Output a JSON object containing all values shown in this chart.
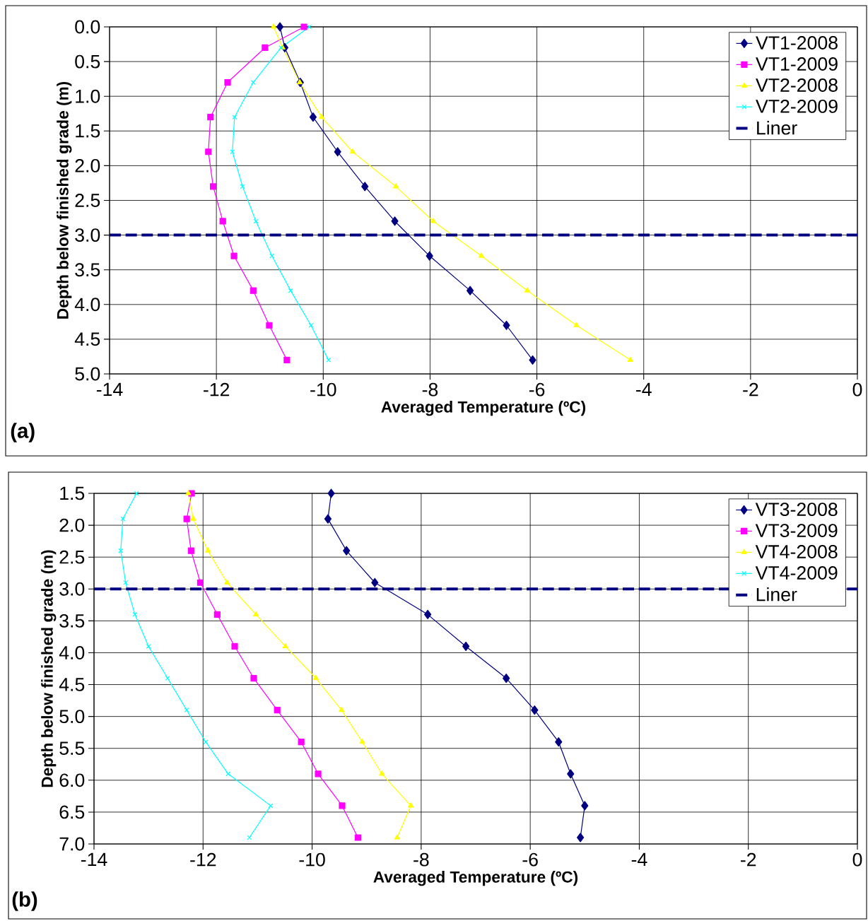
{
  "chart_data": [
    {
      "type": "line",
      "xlabel": "Averaged Temperature (ºC)",
      "ylabel": "Depth below finished grade (m)",
      "annotations": [
        "(a)"
      ],
      "xlim": [
        -14,
        0
      ],
      "xticks": [
        -14,
        -12,
        -10,
        -8,
        -6,
        -4,
        -2,
        0
      ],
      "ylim": [
        5.0,
        0.0
      ],
      "yticks": [
        {
          "value": 0,
          "label": "0.0"
        },
        0.5,
        {
          "value": 1,
          "label": "1.0"
        },
        1.5,
        {
          "value": 2,
          "label": "2.0"
        },
        2.5,
        {
          "value": 3,
          "label": "3.0"
        },
        3.5,
        {
          "value": 4,
          "label": "4.0"
        },
        4.5,
        {
          "value": 5,
          "label": "5.0"
        }
      ],
      "grid": true,
      "legend": "top right",
      "series": [
        {
          "name": "VT1-2008",
          "color": "#000080",
          "marker": "diamond",
          "x": [
            -10.81,
            -10.72,
            -10.43,
            -10.19,
            -9.73,
            -9.22,
            -8.66,
            -8.01,
            -7.25,
            -6.57,
            -6.08
          ],
          "values": [
            0,
            0.3,
            0.8,
            1.3,
            1.8,
            2.3,
            2.8,
            3.3,
            3.8,
            4.3,
            4.8
          ]
        },
        {
          "name": "VT1-2009",
          "color": "#ff00ff",
          "marker": "square",
          "x": [
            -10.36,
            -11.09,
            -11.79,
            -12.11,
            -12.15,
            -12.06,
            -11.88,
            -11.67,
            -11.31,
            -11.01,
            -10.68
          ],
          "values": [
            0,
            0.3,
            0.8,
            1.3,
            1.8,
            2.3,
            2.8,
            3.3,
            3.8,
            4.3,
            4.8
          ]
        },
        {
          "name": "VT2-2008",
          "color": "#ffff00",
          "marker": "triangle",
          "x": [
            -10.93,
            -10.76,
            -10.44,
            -10.03,
            -9.45,
            -8.64,
            -7.94,
            -7.04,
            -6.18,
            -5.26,
            -4.25
          ],
          "values": [
            0,
            0.3,
            0.8,
            1.3,
            1.8,
            2.3,
            2.8,
            3.3,
            3.8,
            4.3,
            4.8
          ]
        },
        {
          "name": "VT2-2009",
          "color": "#00ffff",
          "marker": "cross",
          "x": [
            -10.26,
            -10.79,
            -11.31,
            -11.66,
            -11.7,
            -11.51,
            -11.26,
            -10.96,
            -10.61,
            -10.23,
            -9.9
          ],
          "values": [
            0,
            0.3,
            0.8,
            1.3,
            1.8,
            2.3,
            2.8,
            3.3,
            3.8,
            4.3,
            4.8
          ]
        }
      ],
      "ref_lines": [
        {
          "axis": "y",
          "value": 3.0,
          "label": "Liner",
          "color": "#000080",
          "line_style": "dashed"
        }
      ]
    },
    {
      "type": "line",
      "xlabel": "Averaged Temperature (ºC)",
      "ylabel": "Depth below finished grade (m)",
      "annotations": [
        "(b)"
      ],
      "xlim": [
        -14,
        0
      ],
      "xticks": [
        -14,
        -12,
        -10,
        -8,
        -6,
        -4,
        -2,
        0
      ],
      "ylim": [
        7.0,
        1.5
      ],
      "yticks": [
        1.5,
        {
          "value": 2,
          "label": "2.0"
        },
        2.5,
        {
          "value": 3,
          "label": "3.0"
        },
        3.5,
        {
          "value": 4,
          "label": "4.0"
        },
        4.5,
        {
          "value": 5,
          "label": "5.0"
        },
        5.5,
        {
          "value": 6,
          "label": "6.0"
        },
        6.5,
        {
          "value": 7,
          "label": "7.0"
        }
      ],
      "grid": true,
      "legend": "top right",
      "series": [
        {
          "name": "VT3-2008",
          "color": "#000080",
          "marker": "diamond",
          "x": [
            -9.65,
            -9.71,
            -9.37,
            -8.85,
            -7.88,
            -7.18,
            -6.44,
            -5.92,
            -5.48,
            -5.26,
            -5.0,
            -5.08
          ],
          "values": [
            1.5,
            1.9,
            2.4,
            2.9,
            3.4,
            3.9,
            4.4,
            4.9,
            5.4,
            5.9,
            6.4,
            6.9
          ]
        },
        {
          "name": "VT3-2009",
          "color": "#ff00ff",
          "marker": "square",
          "x": [
            -12.21,
            -12.3,
            -12.22,
            -12.05,
            -11.74,
            -11.42,
            -11.07,
            -10.64,
            -10.2,
            -9.89,
            -9.45,
            -9.16
          ],
          "values": [
            1.5,
            1.9,
            2.4,
            2.9,
            3.4,
            3.9,
            4.4,
            4.9,
            5.4,
            5.9,
            6.4,
            6.9
          ]
        },
        {
          "name": "VT4-2008",
          "color": "#ffff00",
          "marker": "triangle",
          "x": [
            -12.27,
            -12.18,
            -11.91,
            -11.56,
            -11.03,
            -10.49,
            -9.93,
            -9.46,
            -9.08,
            -8.72,
            -8.19,
            -8.44
          ],
          "values": [
            1.5,
            1.9,
            2.4,
            2.9,
            3.4,
            3.9,
            4.4,
            4.9,
            5.4,
            5.9,
            6.4,
            6.9
          ]
        },
        {
          "name": "VT4-2009",
          "color": "#00ffff",
          "marker": "cross",
          "x": [
            -13.22,
            -13.47,
            -13.51,
            -13.42,
            -13.25,
            -13.0,
            -12.65,
            -12.3,
            -11.95,
            -11.54,
            -10.76,
            -11.15
          ],
          "values": [
            1.5,
            1.9,
            2.4,
            2.9,
            3.4,
            3.9,
            4.4,
            4.9,
            5.4,
            5.9,
            6.4,
            6.9
          ]
        }
      ],
      "ref_lines": [
        {
          "axis": "y",
          "value": 3.0,
          "label": "Liner",
          "color": "#000080",
          "line_style": "dashed"
        }
      ]
    }
  ]
}
